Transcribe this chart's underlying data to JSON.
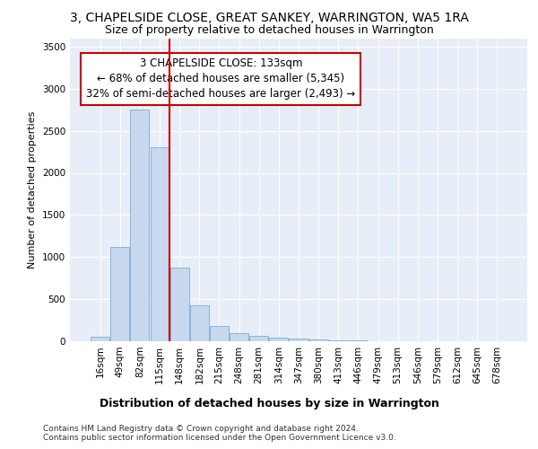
{
  "title1": "3, CHAPELSIDE CLOSE, GREAT SANKEY, WARRINGTON, WA5 1RA",
  "title2": "Size of property relative to detached houses in Warrington",
  "xlabel": "Distribution of detached houses by size in Warrington",
  "ylabel": "Number of detached properties",
  "bar_labels": [
    "16sqm",
    "49sqm",
    "82sqm",
    "115sqm",
    "148sqm",
    "182sqm",
    "215sqm",
    "248sqm",
    "281sqm",
    "314sqm",
    "347sqm",
    "380sqm",
    "413sqm",
    "446sqm",
    "479sqm",
    "513sqm",
    "546sqm",
    "579sqm",
    "612sqm",
    "645sqm",
    "678sqm"
  ],
  "bar_values": [
    50,
    1120,
    2750,
    2300,
    880,
    430,
    180,
    100,
    60,
    45,
    30,
    20,
    10,
    6,
    4,
    3,
    2,
    2,
    2,
    1,
    1
  ],
  "bar_color": "#c8d8ee",
  "bar_edge_color": "#7aadd4",
  "vline_color": "#cc0000",
  "annotation_text": "3 CHAPELSIDE CLOSE: 133sqm\n← 68% of detached houses are smaller (5,345)\n32% of semi-detached houses are larger (2,493) →",
  "annotation_box_color": "#ffffff",
  "annotation_box_edge": "#cc0000",
  "ylim": [
    0,
    3600
  ],
  "yticks": [
    0,
    500,
    1000,
    1500,
    2000,
    2500,
    3000,
    3500
  ],
  "background_color": "#e8eef8",
  "grid_color": "#ffffff",
  "footer1": "Contains HM Land Registry data © Crown copyright and database right 2024.",
  "footer2": "Contains public sector information licensed under the Open Government Licence v3.0.",
  "title1_fontsize": 10,
  "title2_fontsize": 9,
  "xlabel_fontsize": 9,
  "ylabel_fontsize": 8,
  "tick_fontsize": 7.5,
  "footer_fontsize": 6.5,
  "annotation_fontsize": 8.5
}
